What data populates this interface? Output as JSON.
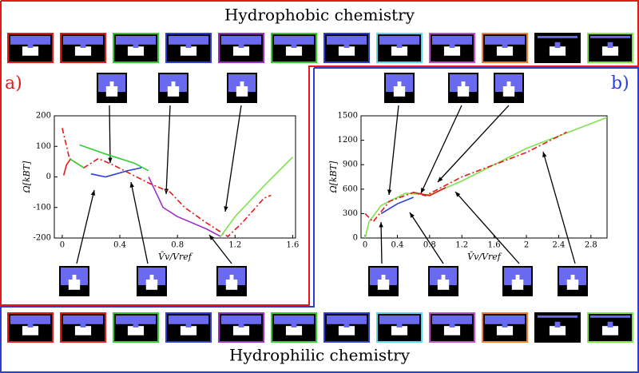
{
  "header": {
    "top": "Hydrophobic chemistry",
    "bottom": "Hydrophilic chemistry"
  },
  "chart_data": [
    {
      "type": "line",
      "panel": "a)",
      "xlabel": "V̄v/Vref",
      "ylabel": "Ω[kBT]",
      "xlim": [
        -0.055,
        1.62
      ],
      "ylim": [
        -200,
        200
      ],
      "xticks": [
        0,
        0.4,
        0.8,
        1.2,
        1.6
      ],
      "yticks": [
        -200,
        -100,
        0,
        100,
        200
      ],
      "series": [
        {
          "color": "#e31a1c",
          "style": "solid",
          "x": [
            0.01,
            0.03,
            0.06
          ],
          "values": [
            5,
            40,
            60
          ]
        },
        {
          "color": "#e31a1c",
          "style": "dashdot",
          "x": [
            0,
            0.05,
            0.15,
            0.25,
            0.35,
            0.6,
            0.75,
            0.85,
            1.0,
            1.15,
            1.25,
            1.4,
            1.45
          ],
          "values": [
            160,
            60,
            30,
            60,
            40,
            -20,
            -50,
            -100,
            -150,
            -195,
            -150,
            -70,
            -60
          ]
        },
        {
          "color": "#33cc33",
          "style": "solid",
          "x": [
            0.12,
            0.3,
            0.5,
            0.6
          ],
          "values": [
            105,
            75,
            45,
            20
          ]
        },
        {
          "color": "#33cc33",
          "style": "solid",
          "x": [
            0.05,
            0.15
          ],
          "values": [
            60,
            30
          ]
        },
        {
          "color": "#2b3fd6",
          "style": "solid",
          "x": [
            0.2,
            0.3,
            0.45,
            0.55
          ],
          "values": [
            10,
            0,
            20,
            30
          ]
        },
        {
          "color": "#9b30c8",
          "style": "solid",
          "x": [
            0.6,
            0.7,
            0.8,
            1.0,
            1.1
          ],
          "values": [
            0,
            -100,
            -130,
            -170,
            -195
          ]
        },
        {
          "color": "#7ee34a",
          "style": "solid",
          "x": [
            1.1,
            1.2,
            1.4,
            1.6
          ],
          "values": [
            -195,
            -130,
            -30,
            65
          ]
        }
      ]
    },
    {
      "type": "line",
      "panel": "b)",
      "xlabel": "V̄v/Vref",
      "ylabel": "Ω[kBT]",
      "xlim": [
        -0.05,
        3.0
      ],
      "ylim": [
        0,
        1500
      ],
      "xticks": [
        0,
        0.4,
        0.8,
        1.2,
        1.6,
        2,
        2.4,
        2.8
      ],
      "yticks": [
        0,
        300,
        600,
        900,
        1200,
        1500
      ],
      "series": [
        {
          "color": "#7ee34a",
          "style": "solid",
          "x": [
            0,
            0.05,
            0.2,
            0.5,
            0.8,
            1.2,
            2,
            3
          ],
          "values": [
            0,
            200,
            400,
            550,
            530,
            700,
            1100,
            1480
          ]
        },
        {
          "color": "#e31a1c",
          "style": "dashdot",
          "x": [
            0,
            0.1,
            0.3,
            0.6,
            0.75,
            1.2,
            2,
            2.5
          ],
          "values": [
            300,
            200,
            450,
            560,
            520,
            750,
            1050,
            1300
          ]
        },
        {
          "color": "#2b3fd6",
          "style": "solid",
          "x": [
            0.2,
            0.4,
            0.6
          ],
          "values": [
            300,
            420,
            500
          ]
        },
        {
          "color": "#e31a1c",
          "style": "solid",
          "x": [
            0.6,
            0.8,
            1.0
          ],
          "values": [
            560,
            520,
            620
          ]
        }
      ]
    }
  ]
}
